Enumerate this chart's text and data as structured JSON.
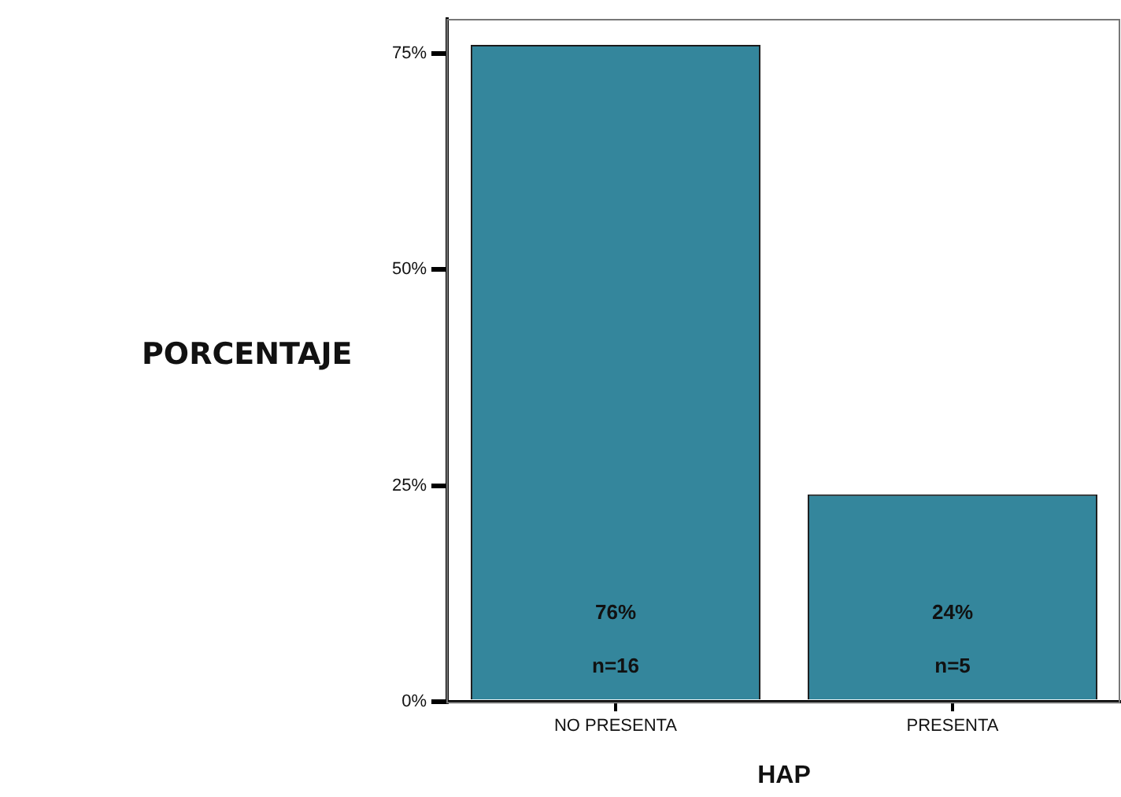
{
  "chart_data": {
    "type": "bar",
    "xlabel": "HAP",
    "ylabel": "PORCENTAJE",
    "categories": [
      "NO PRESENTA",
      "PRESENTA"
    ],
    "values": [
      76,
      24
    ],
    "color": "#34869c",
    "value_labels": [
      "76%\nn=16",
      "24%\nn=5"
    ],
    "ylim": [
      0,
      79
    ],
    "yticks": [
      {
        "value": 0,
        "label": "0%"
      },
      {
        "value": 25,
        "label": "25%"
      },
      {
        "value": 50,
        "label": "50%"
      },
      {
        "value": 75,
        "label": "75%"
      }
    ],
    "grid": false,
    "legend": false
  }
}
